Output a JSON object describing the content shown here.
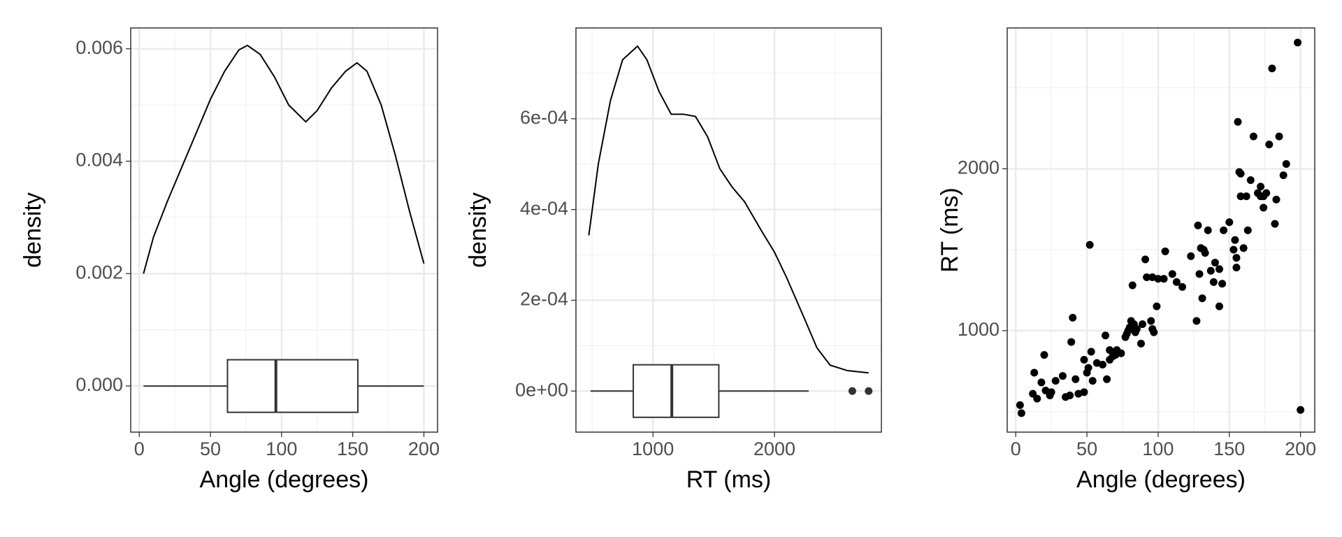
{
  "chart_data": [
    {
      "type": "density",
      "xlabel": "Angle (degrees)",
      "ylabel": "density",
      "color": "#000000",
      "x": [
        3,
        10,
        20,
        30,
        40,
        50,
        60,
        70,
        76,
        85,
        95,
        105,
        117,
        125,
        135,
        145,
        153,
        160,
        170,
        180,
        190,
        200
      ],
      "values": [
        0.002,
        0.00265,
        0.0033,
        0.0039,
        0.0045,
        0.0051,
        0.0056,
        0.00598,
        0.00606,
        0.0059,
        0.0055,
        0.005,
        0.0047,
        0.0049,
        0.0053,
        0.0056,
        0.00575,
        0.0056,
        0.005,
        0.0041,
        0.0031,
        0.00218
      ],
      "boxplot": {
        "whislo": 3,
        "q1": 62,
        "median": 96,
        "q3": 153.6,
        "whishi": 200,
        "outliers": []
      },
      "xlim": [
        -6,
        209.6
      ],
      "ylim": [
        -0.00082,
        0.00637
      ],
      "xticks": [
        0,
        50,
        100,
        150,
        200
      ],
      "yticks": [
        {
          "value": 0,
          "label": "0.000"
        },
        0.002,
        0.004,
        0.006
      ]
    },
    {
      "type": "density",
      "xlabel": "RT (ms)",
      "ylabel": "density",
      "color": "#000000",
      "x": [
        472,
        550,
        650,
        750,
        873,
        950,
        1050,
        1150,
        1250,
        1350,
        1450,
        1550,
        1650,
        1754,
        1900,
        2000,
        2100,
        2246,
        2350,
        2458,
        2600,
        2775
      ],
      "values": [
        0.000343,
        0.0005,
        0.00064,
        0.00073,
        0.00076,
        0.00073,
        0.00066,
        0.00061,
        0.00061,
        0.000605,
        0.00056,
        0.00049,
        0.00045,
        0.000417,
        0.00035,
        0.000306,
        0.00025,
        0.00016,
        9.5e-05,
        5.7e-05,
        4.5e-05,
        4e-05
      ],
      "boxplot": {
        "whislo": 486,
        "q1": 838,
        "median": 1155,
        "q3": 1542,
        "whishi": 2282,
        "outliers": [
          2641,
          2775
        ]
      },
      "xlim": [
        366,
        2880
      ],
      "ylim": [
        -9.05e-05,
        0.0008
      ],
      "xticks": [
        1000,
        2000
      ],
      "yticks": [
        {
          "value": 0,
          "label": "0e+00"
        },
        {
          "value": 0.0002,
          "label": "2e-04"
        },
        {
          "value": 0.0004,
          "label": "4e-04"
        },
        {
          "value": 0.0006,
          "label": "6e-04"
        }
      ]
    },
    {
      "type": "scatter",
      "xlabel": "Angle (degrees)",
      "ylabel": "RT (ms)",
      "color": "#000000",
      "x": [
        3,
        4,
        12,
        13,
        15,
        18,
        20,
        21,
        24,
        25,
        28,
        33,
        35,
        38,
        39,
        40,
        42,
        44,
        48,
        48,
        50,
        51,
        52,
        53,
        54,
        57,
        61,
        63,
        64,
        66,
        66,
        68,
        70,
        71,
        74,
        77,
        78,
        79,
        80,
        81,
        82,
        83,
        84,
        85,
        88,
        89,
        91,
        92,
        95,
        96,
        96,
        97,
        99,
        100,
        104,
        105,
        110,
        113,
        117,
        123,
        127,
        128,
        129,
        130,
        131,
        132,
        133,
        135,
        137,
        139,
        140,
        143,
        143,
        145,
        146,
        150,
        153,
        154,
        155,
        155,
        156,
        157,
        158,
        158,
        160,
        162,
        163,
        165,
        167,
        170,
        172,
        172,
        174,
        174,
        176,
        178,
        180,
        182,
        183,
        185,
        188,
        190,
        198,
        200
      ],
      "values": [
        540,
        490,
        610,
        740,
        580,
        680,
        850,
        630,
        600,
        620,
        690,
        720,
        590,
        600,
        930,
        1080,
        700,
        610,
        620,
        820,
        740,
        770,
        1530,
        870,
        690,
        800,
        790,
        970,
        700,
        820,
        880,
        840,
        850,
        880,
        860,
        960,
        980,
        1000,
        1020,
        1060,
        1280,
        1040,
        990,
        1010,
        920,
        1040,
        1440,
        1330,
        1060,
        1010,
        1330,
        990,
        1150,
        1320,
        1320,
        1490,
        1350,
        1300,
        1270,
        1460,
        1060,
        1650,
        1350,
        1510,
        1200,
        1500,
        1480,
        1620,
        1370,
        1300,
        1420,
        1380,
        1150,
        1290,
        1620,
        1670,
        1500,
        1560,
        1450,
        1390,
        2290,
        1980,
        1970,
        1830,
        1510,
        1830,
        1620,
        1930,
        2200,
        1850,
        1890,
        1830,
        1830,
        1760,
        1850,
        2150,
        2620,
        1660,
        1810,
        2200,
        1960,
        2030,
        2780,
        510
      ],
      "xlim": [
        -6,
        210
      ],
      "ylim": [
        373,
        2870
      ],
      "xticks": [
        0,
        50,
        100,
        150,
        200
      ],
      "yticks": [
        1000,
        2000
      ]
    }
  ]
}
